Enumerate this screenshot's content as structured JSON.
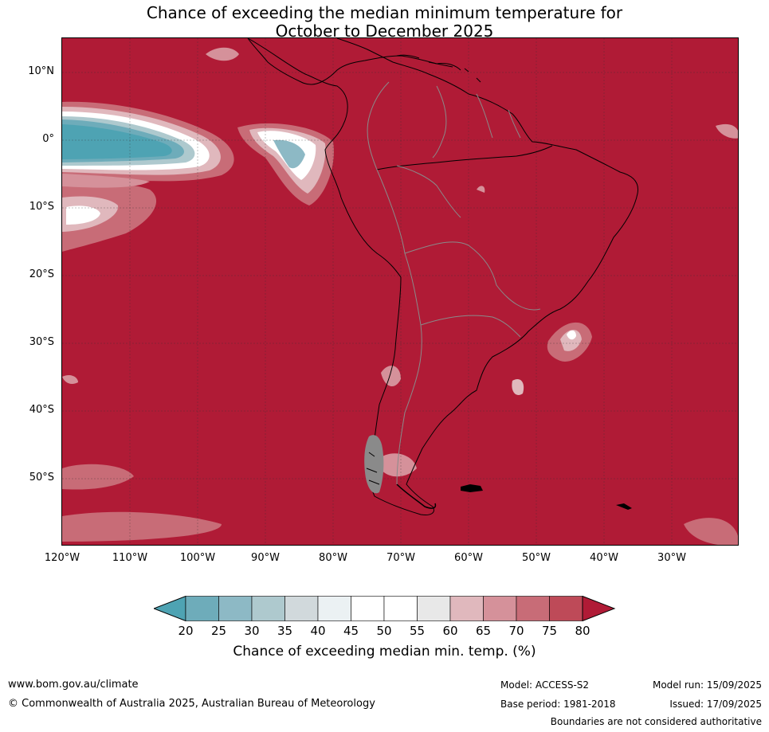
{
  "title_line1": "Chance of exceeding the median minimum temperature for",
  "title_line2": "October to December 2025",
  "colors": {
    "land_ocean_high": "#b01b36",
    "cool_low": "#4ea3b3",
    "coast": "#000000",
    "border": "#8a8a8a",
    "grid": "#333333"
  },
  "lat_labels": [
    "10°N",
    "0°",
    "10°S",
    "20°S",
    "30°S",
    "40°S",
    "50°S"
  ],
  "lon_labels": [
    "120°W",
    "110°W",
    "100°W",
    "90°W",
    "80°W",
    "70°W",
    "60°W",
    "50°W",
    "40°W",
    "30°W"
  ],
  "colorbar": {
    "ticks": [
      "20",
      "25",
      "30",
      "35",
      "40",
      "45",
      "50",
      "55",
      "60",
      "65",
      "70",
      "75",
      "80"
    ],
    "colors": [
      "#4ea3b3",
      "#6eacba",
      "#8db9c5",
      "#aec9ce",
      "#d1d9dc",
      "#ebf1f3",
      "#ffffff",
      "#ffffff",
      "#e8e8e8",
      "#e0b8bd",
      "#d5919a",
      "#c86c77",
      "#be4a58",
      "#b01b36"
    ],
    "label": "Chance of exceeding median min. temp. (%)"
  },
  "footer": {
    "website": "www.bom.gov.au/climate",
    "copyright": "© Commonwealth of Australia 2025, Australian Bureau of Meteorology",
    "model": "Model: ACCESS-S2",
    "base_period": "Base period: 1981-2018",
    "model_run": "Model run: 15/09/2025",
    "issued": "Issued: 17/09/2025",
    "disclaimer": "Boundaries are not considered authoritative"
  }
}
